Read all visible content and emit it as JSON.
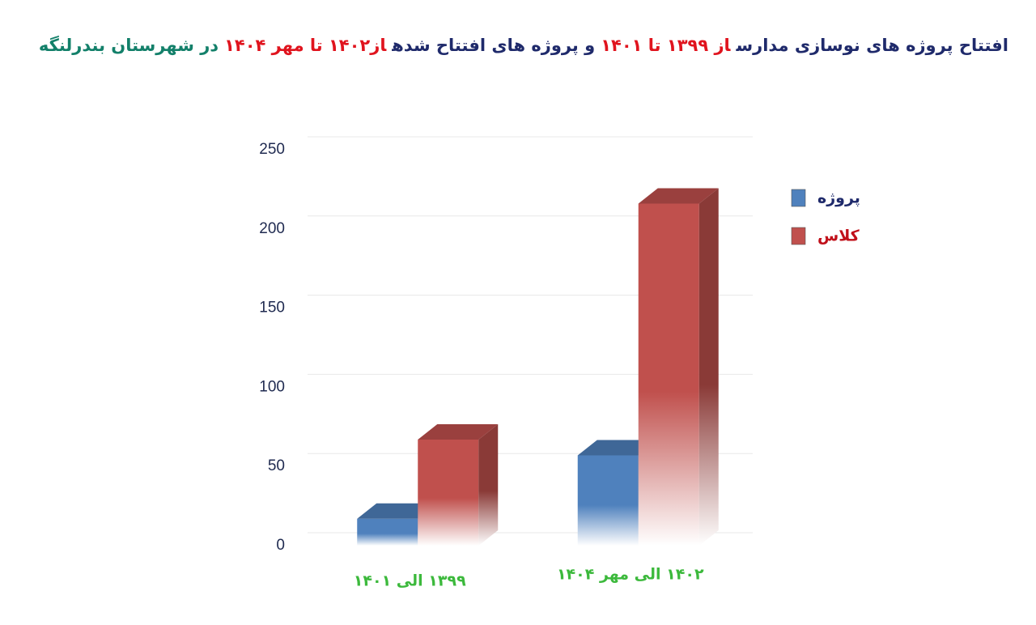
{
  "chart_data": {
    "type": "bar3d",
    "title_parts": [
      {
        "text": "افتتاح پروژه های نوسازی مدارس",
        "color": "#1f2a6b"
      },
      {
        "text": "از ۱۳۹۹ تا ۱۴۰۱",
        "color": "#e0141e"
      },
      {
        "text": "و پروژه های افتتاح شده",
        "color": "#1f2a6b"
      },
      {
        "text": "از۱۴۰۲ تا مهر ۱۴۰۴",
        "color": "#e0141e"
      },
      {
        "text": "در شهرستان بندرلنگه",
        "color": "#13806a"
      }
    ],
    "categories": [
      "۱۳۹۹ الی ۱۴۰۱",
      "۱۴۰۲ الی مهر ۱۴۰۴"
    ],
    "category_color": "#3cb93c",
    "series": [
      {
        "name": "پروژه",
        "color": "#4f81bd",
        "values": [
          17,
          57
        ]
      },
      {
        "name": "کلاس",
        "color": "#c0504d",
        "values": [
          67,
          216
        ]
      }
    ],
    "ylim": [
      0,
      250
    ],
    "yticks": [
      0,
      50,
      100,
      150,
      200,
      250
    ],
    "grid": true,
    "legend": "right"
  }
}
